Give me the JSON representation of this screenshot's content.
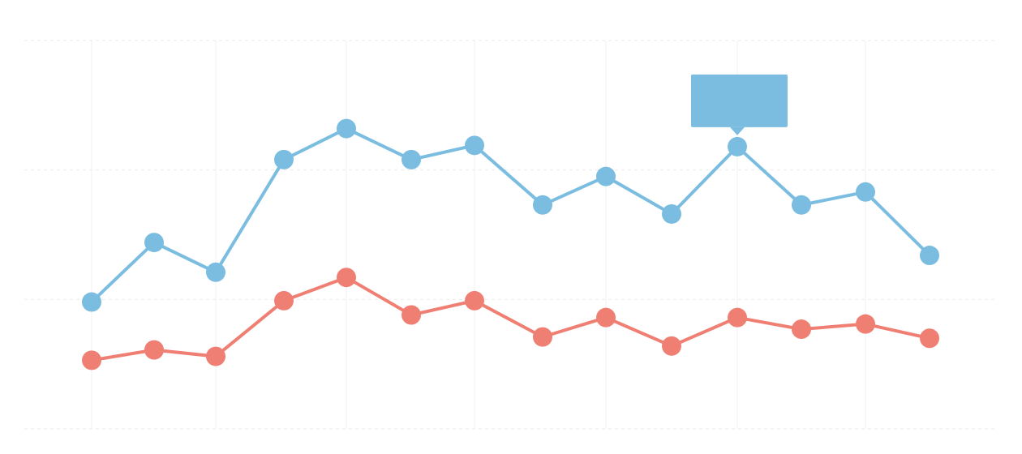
{
  "chart_data": {
    "type": "line",
    "title": "",
    "xlabel": "",
    "ylabel": "",
    "ylim": [
      0,
      3
    ],
    "grid": {
      "horizontal": true,
      "vertical": true,
      "style": "dashed horizontal, faint solid vertical"
    },
    "legend": "none",
    "series": [
      {
        "color": "#7bbde0",
        "values": [
          0.98,
          1.44,
          1.21,
          2.08,
          2.32,
          2.08,
          2.19,
          1.73,
          1.95,
          1.66,
          2.18,
          1.73,
          1.83,
          1.34
        ]
      },
      {
        "color": "#f07f73",
        "values": [
          0.53,
          0.61,
          0.56,
          0.99,
          1.17,
          0.88,
          0.99,
          0.71,
          0.86,
          0.64,
          0.86,
          0.77,
          0.81,
          0.7
        ]
      }
    ],
    "tooltip": {
      "series_index": 0,
      "point_index": 10,
      "color": "#7bbde0",
      "text": ""
    }
  }
}
